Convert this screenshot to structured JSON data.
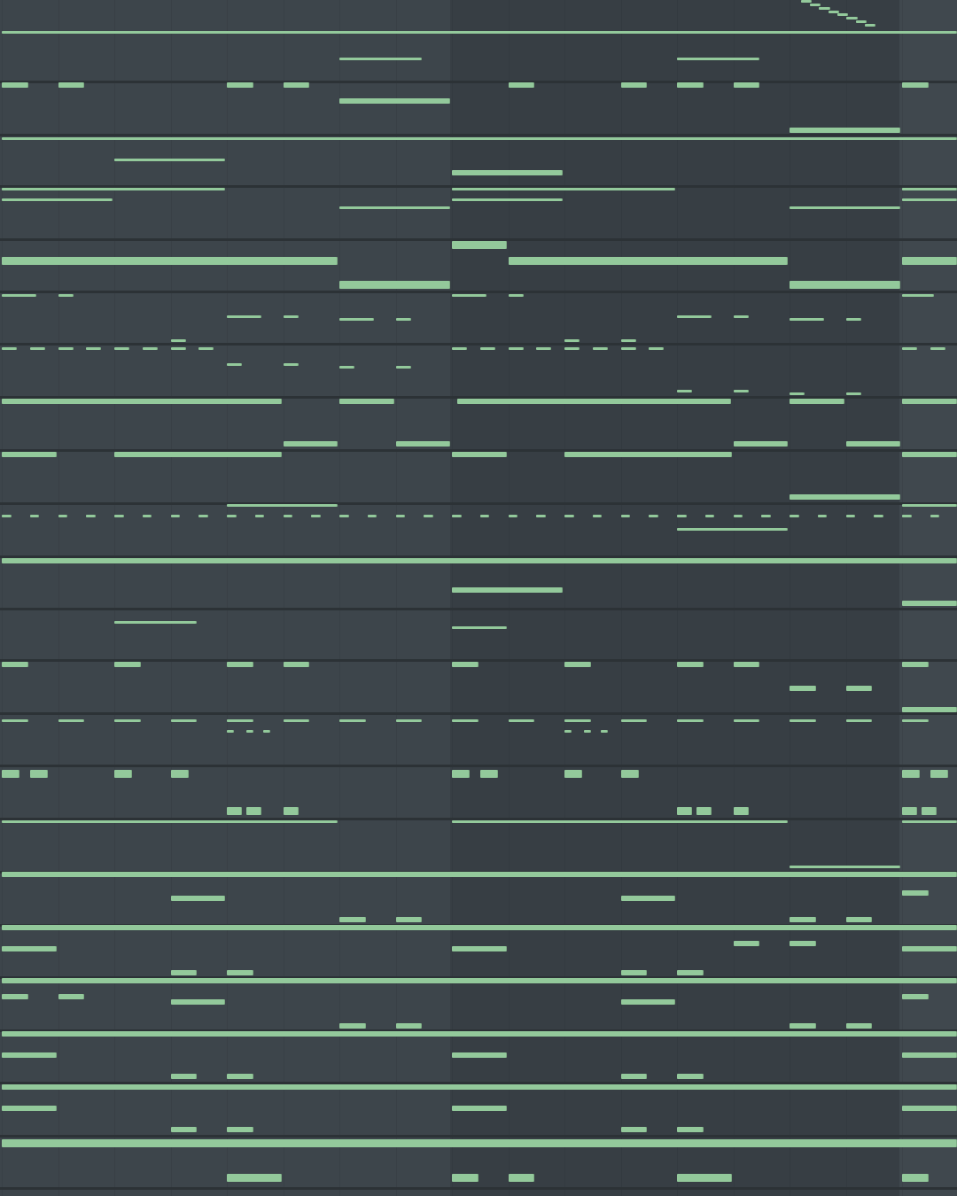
{
  "view": "piano-roll",
  "colors": {
    "note": "#93c99b",
    "background": "#3d454b",
    "alt_background": "#373e44",
    "separator": "#2c3236"
  },
  "grid": {
    "beats_visible": 17
  },
  "lanes": [
    {
      "row": 12,
      "style": "t",
      "notes": [
        [
          0,
          17
        ]
      ]
    },
    {
      "row": 22,
      "style": "t",
      "notes": [
        [
          6,
          1.5
        ],
        [
          12,
          1.5
        ]
      ]
    },
    {
      "row": 32,
      "style": "m",
      "notes": [
        [
          0,
          0.5
        ],
        [
          1,
          0.5
        ],
        [
          4,
          0.5
        ],
        [
          5,
          0.5
        ],
        [
          9,
          0.5
        ],
        [
          11,
          0.5
        ],
        [
          12,
          0.5
        ],
        [
          13,
          0.5
        ],
        [
          16,
          0.5
        ]
      ]
    },
    {
      "row": 38,
      "style": "m",
      "notes": [
        [
          6,
          2
        ]
      ]
    },
    {
      "row": 49,
      "style": "m",
      "notes": [
        [
          14,
          2
        ]
      ]
    },
    {
      "row": 52,
      "style": "t",
      "notes": [
        [
          0,
          17
        ]
      ]
    },
    {
      "row": 60,
      "style": "t",
      "notes": [
        [
          2,
          2
        ]
      ]
    },
    {
      "row": 65,
      "style": "m",
      "notes": [
        [
          8,
          2
        ]
      ]
    },
    {
      "row": 71,
      "style": "t",
      "notes": [
        [
          0,
          4
        ],
        [
          8,
          4
        ],
        [
          16,
          1
        ]
      ]
    },
    {
      "row": 75,
      "style": "t",
      "notes": [
        [
          0,
          2
        ],
        [
          8,
          2
        ],
        [
          16,
          1
        ]
      ]
    },
    {
      "row": 78,
      "style": "t",
      "notes": [
        [
          6,
          2
        ],
        [
          14,
          2
        ]
      ]
    },
    {
      "row": 92,
      "style": "b",
      "notes": [
        [
          8,
          1
        ]
      ]
    },
    {
      "row": 98,
      "style": "b",
      "notes": [
        [
          0,
          6
        ],
        [
          9,
          5
        ],
        [
          16,
          1
        ]
      ]
    },
    {
      "row": 107,
      "style": "b",
      "notes": [
        [
          6,
          2
        ],
        [
          14,
          2
        ]
      ]
    },
    {
      "row": 111,
      "style": "t",
      "notes": [
        [
          0,
          0.65
        ],
        [
          1,
          0.3
        ],
        [
          8,
          0.65
        ],
        [
          9,
          0.3
        ],
        [
          16,
          0.6
        ]
      ]
    },
    {
      "row": 119,
      "style": "t",
      "notes": [
        [
          4,
          0.65
        ],
        [
          5,
          0.3
        ],
        [
          12,
          0.65
        ],
        [
          13,
          0.3
        ]
      ]
    },
    {
      "row": 120,
      "style": "t",
      "notes": [
        [
          6,
          0.65
        ],
        [
          7,
          0.3
        ],
        [
          14,
          0.65
        ],
        [
          15,
          0.3
        ]
      ]
    },
    {
      "row": 128,
      "style": "t",
      "notes": [
        [
          3,
          0.3
        ],
        [
          10,
          0.3
        ],
        [
          11,
          0.3
        ]
      ]
    },
    {
      "row": 131,
      "style": "t",
      "notes": [
        [
          0,
          0.3
        ],
        [
          0.5,
          0.3
        ],
        [
          1,
          0.3
        ],
        [
          1.5,
          0.3
        ],
        [
          2,
          0.3
        ],
        [
          2.5,
          0.3
        ],
        [
          3,
          0.3
        ],
        [
          3.5,
          0.3
        ],
        [
          8,
          0.3
        ],
        [
          8.5,
          0.3
        ],
        [
          9,
          0.3
        ],
        [
          9.5,
          0.3
        ],
        [
          10,
          0.3
        ],
        [
          10.5,
          0.3
        ],
        [
          11,
          0.3
        ],
        [
          11.5,
          0.3
        ],
        [
          16,
          0.3
        ],
        [
          16.5,
          0.3
        ]
      ]
    },
    {
      "row": 137,
      "style": "t",
      "notes": [
        [
          4,
          0.3
        ],
        [
          5,
          0.3
        ]
      ]
    },
    {
      "row": 138,
      "style": "t",
      "notes": [
        [
          6,
          0.3
        ],
        [
          7,
          0.3
        ]
      ]
    },
    {
      "row": 147,
      "style": "t",
      "notes": [
        [
          12,
          0.3
        ],
        [
          13,
          0.3
        ]
      ]
    },
    {
      "row": 148,
      "style": "t",
      "notes": [
        [
          14,
          0.3
        ],
        [
          15,
          0.3
        ]
      ]
    },
    {
      "row": 151,
      "style": "m",
      "notes": [
        [
          0,
          5
        ],
        [
          6,
          1
        ],
        [
          8.1,
          4.9
        ],
        [
          14,
          1
        ],
        [
          16,
          1
        ]
      ]
    },
    {
      "row": 167,
      "style": "m",
      "notes": [
        [
          5,
          1
        ],
        [
          7,
          1
        ],
        [
          13,
          1
        ],
        [
          15,
          1
        ]
      ]
    },
    {
      "row": 171,
      "style": "m",
      "notes": [
        [
          0,
          1
        ],
        [
          2,
          3
        ],
        [
          8,
          1
        ],
        [
          10,
          3
        ],
        [
          16,
          1
        ]
      ]
    },
    {
      "row": 187,
      "style": "m",
      "notes": [
        [
          14,
          2
        ]
      ]
    },
    {
      "row": 190,
      "style": "t",
      "notes": [
        [
          4,
          2
        ],
        [
          16,
          1
        ]
      ]
    },
    {
      "row": 194,
      "style": "t",
      "notes": [
        [
          0,
          0.2
        ],
        [
          0.5,
          0.2
        ],
        [
          1,
          0.2
        ],
        [
          1.5,
          0.2
        ],
        [
          2,
          0.2
        ],
        [
          2.5,
          0.2
        ],
        [
          3,
          0.2
        ],
        [
          3.5,
          0.2
        ],
        [
          4,
          0.2
        ],
        [
          4.5,
          0.2
        ],
        [
          5,
          0.2
        ],
        [
          5.5,
          0.2
        ],
        [
          6,
          0.2
        ],
        [
          6.5,
          0.2
        ],
        [
          7,
          0.2
        ],
        [
          7.5,
          0.2
        ],
        [
          8,
          0.2
        ],
        [
          8.5,
          0.2
        ],
        [
          9,
          0.2
        ],
        [
          9.5,
          0.2
        ],
        [
          10,
          0.2
        ],
        [
          10.5,
          0.2
        ],
        [
          11,
          0.2
        ],
        [
          11.5,
          0.2
        ],
        [
          12,
          0.2
        ],
        [
          12.5,
          0.2
        ],
        [
          13,
          0.2
        ],
        [
          13.5,
          0.2
        ],
        [
          14,
          0.2
        ],
        [
          14.5,
          0.2
        ],
        [
          15,
          0.2
        ],
        [
          15.5,
          0.2
        ],
        [
          16,
          0.2
        ],
        [
          16.5,
          0.2
        ]
      ]
    },
    {
      "row": 199,
      "style": "t",
      "notes": [
        [
          12,
          2
        ]
      ]
    },
    {
      "row": 211,
      "style": "m",
      "notes": [
        [
          0,
          17
        ]
      ]
    },
    {
      "row": 222,
      "style": "m",
      "notes": [
        [
          8,
          2
        ]
      ]
    },
    {
      "row": 227,
      "style": "m",
      "notes": [
        [
          16,
          1
        ]
      ]
    },
    {
      "row": 234,
      "style": "t",
      "notes": [
        [
          2,
          1.5
        ]
      ]
    },
    {
      "row": 236,
      "style": "t",
      "notes": [
        [
          8,
          1
        ]
      ]
    },
    {
      "row": 250,
      "style": "m",
      "notes": [
        [
          0,
          0.5
        ],
        [
          2,
          0.5
        ],
        [
          4,
          0.5
        ],
        [
          5,
          0.5
        ],
        [
          8,
          0.5
        ],
        [
          10,
          0.5
        ],
        [
          12,
          0.5
        ],
        [
          13,
          0.5
        ],
        [
          16,
          0.5
        ]
      ]
    },
    {
      "row": 259,
      "style": "m",
      "notes": [
        [
          14,
          0.5
        ],
        [
          15,
          0.5
        ]
      ]
    },
    {
      "row": 267,
      "style": "m",
      "notes": [
        [
          16,
          1
        ]
      ]
    },
    {
      "row": 271,
      "style": "t",
      "notes": [
        [
          0,
          0.5
        ],
        [
          1,
          0.5
        ],
        [
          2,
          0.5
        ],
        [
          3,
          0.5
        ],
        [
          4,
          0.5
        ],
        [
          5,
          0.5
        ],
        [
          6,
          0.5
        ],
        [
          7,
          0.5
        ],
        [
          8,
          0.5
        ],
        [
          9,
          0.5
        ],
        [
          10,
          0.5
        ],
        [
          11,
          0.5
        ],
        [
          12,
          0.5
        ],
        [
          13,
          0.5
        ],
        [
          14,
          0.5
        ],
        [
          15,
          0.5
        ],
        [
          16,
          0.5
        ]
      ]
    },
    {
      "row": 275,
      "style": "t",
      "notes": [
        [
          4,
          0.15
        ],
        [
          4.35,
          0.15
        ],
        [
          4.65,
          0.15
        ],
        [
          10,
          0.15
        ],
        [
          10.35,
          0.15
        ],
        [
          10.65,
          0.15
        ]
      ]
    },
    {
      "row": 291,
      "style": "b",
      "notes": [
        [
          0,
          0.35
        ],
        [
          0.5,
          0.35
        ],
        [
          2,
          0.35
        ],
        [
          3,
          0.35
        ],
        [
          8,
          0.35
        ],
        [
          8.5,
          0.35
        ],
        [
          10,
          0.35
        ],
        [
          11,
          0.35
        ],
        [
          16,
          0.35
        ],
        [
          16.5,
          0.35
        ]
      ]
    },
    {
      "row": 305,
      "style": "b",
      "notes": [
        [
          4,
          0.3
        ],
        [
          4.35,
          0.3
        ],
        [
          5,
          0.3
        ],
        [
          12,
          0.3
        ],
        [
          12.35,
          0.3
        ],
        [
          13,
          0.3
        ],
        [
          16,
          0.3
        ],
        [
          16.35,
          0.3
        ]
      ]
    },
    {
      "row": 309,
      "style": "t",
      "notes": [
        [
          0,
          6
        ],
        [
          8,
          6
        ],
        [
          16,
          1
        ]
      ]
    },
    {
      "row": 326,
      "style": "t",
      "notes": [
        [
          14,
          2
        ]
      ]
    },
    {
      "row": 329,
      "style": "m",
      "notes": [
        [
          0,
          17
        ]
      ]
    },
    {
      "row": 336,
      "style": "m",
      "notes": [
        [
          16,
          0.5
        ]
      ]
    },
    {
      "row": 338,
      "style": "m",
      "notes": [
        [
          3,
          1
        ],
        [
          11,
          1
        ]
      ]
    },
    {
      "row": 346,
      "style": "m",
      "notes": [
        [
          6,
          0.5
        ],
        [
          7,
          0.5
        ],
        [
          14,
          0.5
        ],
        [
          15,
          0.5
        ]
      ]
    },
    {
      "row": 349,
      "style": "m",
      "notes": [
        [
          0,
          17
        ]
      ]
    },
    {
      "row": 355,
      "style": "m",
      "notes": [
        [
          13,
          0.5
        ],
        [
          14,
          0.5
        ]
      ]
    },
    {
      "row": 357,
      "style": "m",
      "notes": [
        [
          0,
          1
        ],
        [
          8,
          1
        ],
        [
          16,
          1
        ]
      ]
    },
    {
      "row": 366,
      "style": "m",
      "notes": [
        [
          3,
          0.5
        ],
        [
          4,
          0.5
        ],
        [
          11,
          0.5
        ],
        [
          12,
          0.5
        ]
      ]
    },
    {
      "row": 369,
      "style": "m",
      "notes": [
        [
          0,
          17
        ]
      ]
    },
    {
      "row": 375,
      "style": "m",
      "notes": [
        [
          0,
          0.5
        ],
        [
          1,
          0.5
        ],
        [
          16,
          0.5
        ]
      ]
    },
    {
      "row": 377,
      "style": "m",
      "notes": [
        [
          3,
          1
        ],
        [
          11,
          1
        ]
      ]
    },
    {
      "row": 386,
      "style": "m",
      "notes": [
        [
          6,
          0.5
        ],
        [
          7,
          0.5
        ],
        [
          14,
          0.5
        ],
        [
          15,
          0.5
        ]
      ]
    },
    {
      "row": 389,
      "style": "m",
      "notes": [
        [
          0,
          17
        ]
      ]
    },
    {
      "row": 397,
      "style": "m",
      "notes": [
        [
          0,
          1
        ],
        [
          8,
          1
        ],
        [
          16,
          1
        ]
      ]
    },
    {
      "row": 405,
      "style": "m",
      "notes": [
        [
          3,
          0.5
        ],
        [
          4,
          0.5
        ],
        [
          11,
          0.5
        ],
        [
          12,
          0.5
        ]
      ]
    },
    {
      "row": 409,
      "style": "m",
      "notes": [
        [
          0,
          17
        ]
      ]
    },
    {
      "row": 417,
      "style": "m",
      "notes": [
        [
          0,
          1
        ],
        [
          8,
          1
        ],
        [
          16,
          1
        ]
      ]
    },
    {
      "row": 425,
      "style": "m",
      "notes": [
        [
          3,
          0.5
        ],
        [
          4,
          0.5
        ],
        [
          11,
          0.5
        ],
        [
          12,
          0.5
        ]
      ]
    },
    {
      "row": 430,
      "style": "b",
      "notes": [
        [
          0,
          17
        ]
      ]
    },
    {
      "row": 443,
      "style": "b",
      "notes": [
        [
          4,
          1
        ],
        [
          8,
          0.5
        ],
        [
          9,
          0.5
        ],
        [
          12,
          1
        ],
        [
          16,
          0.5
        ]
      ]
    }
  ],
  "slide": {
    "start": 14.2,
    "len": 1.3,
    "row_from": 0,
    "row_to": 9,
    "steps": 8
  }
}
